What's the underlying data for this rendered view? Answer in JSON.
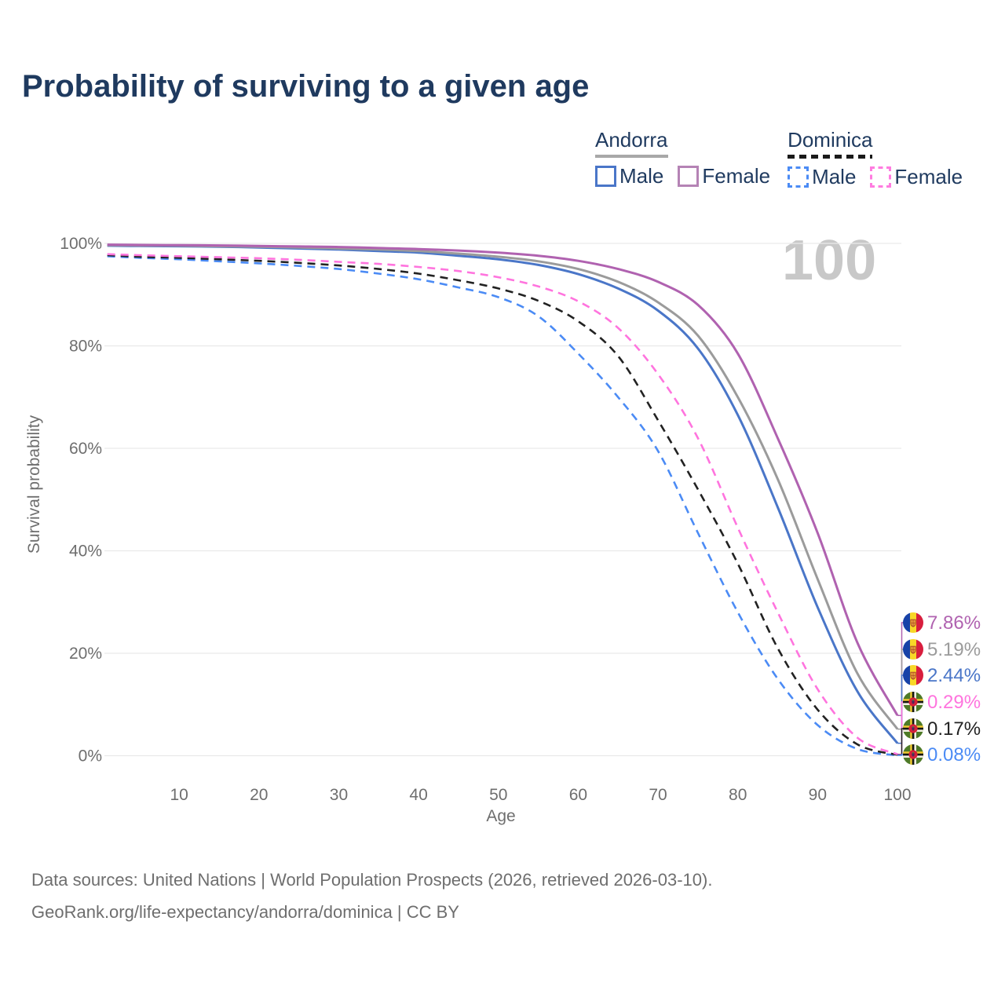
{
  "header": {
    "title": "Probability of surviving to a given age"
  },
  "legend": {
    "groups": [
      {
        "country": "Andorra",
        "line_color": "#a8a8a8",
        "line_style": "solid",
        "items": [
          {
            "label": "Male",
            "color": "#4a76c8",
            "style": "solid"
          },
          {
            "label": "Female",
            "color": "#b583b5",
            "style": "solid"
          }
        ]
      },
      {
        "country": "Dominica",
        "line_color": "#1a1a1a",
        "line_style": "dashed",
        "items": [
          {
            "label": "Male",
            "color": "#4b8bf5",
            "style": "dashed"
          },
          {
            "label": "Female",
            "color": "#ff7ce0",
            "style": "dashed"
          }
        ]
      }
    ]
  },
  "watermark": {
    "text": "100"
  },
  "chart_data": {
    "type": "line",
    "title": "Probability of surviving to a given age",
    "xlabel": "Age",
    "ylabel": "Survival probability",
    "xlim": [
      1,
      100
    ],
    "ylim": [
      0,
      100
    ],
    "grid": true,
    "legend_position": "top-right",
    "x_ticks": [
      10,
      20,
      30,
      40,
      50,
      60,
      70,
      80,
      90,
      100
    ],
    "y_ticks": [
      {
        "label": "100%",
        "value": 100
      },
      {
        "label": "80%",
        "value": 80
      },
      {
        "label": "60%",
        "value": 60
      },
      {
        "label": "40%",
        "value": 40
      },
      {
        "label": "20%",
        "value": 20
      },
      {
        "label": "0%",
        "value": 0
      }
    ],
    "ages": [
      1,
      5,
      10,
      15,
      20,
      25,
      30,
      35,
      40,
      45,
      50,
      55,
      60,
      65,
      70,
      75,
      80,
      85,
      90,
      95,
      100
    ],
    "series": [
      {
        "name": "Andorra Female",
        "country": "Andorra",
        "sex": "female",
        "color": "#b062b0",
        "dash": false,
        "values": [
          99.75,
          99.7,
          99.65,
          99.6,
          99.5,
          99.4,
          99.3,
          99.1,
          98.9,
          98.6,
          98.2,
          97.6,
          96.6,
          95.0,
          92.5,
          88.0,
          78.5,
          62.0,
          43.5,
          22.0,
          7.86
        ]
      },
      {
        "name": "Andorra Both sexes",
        "country": "Andorra",
        "sex": "both",
        "color": "#9b9b9b",
        "dash": false,
        "values": [
          99.65,
          99.6,
          99.55,
          99.45,
          99.35,
          99.2,
          99.0,
          98.8,
          98.5,
          98.0,
          97.4,
          96.5,
          95.0,
          92.5,
          88.5,
          82.0,
          70.0,
          54.0,
          34.5,
          16.0,
          5.19
        ]
      },
      {
        "name": "Andorra Male",
        "country": "Andorra",
        "sex": "male",
        "color": "#4a76c8",
        "dash": false,
        "values": [
          99.55,
          99.5,
          99.45,
          99.35,
          99.2,
          99.0,
          98.8,
          98.5,
          98.2,
          97.6,
          96.9,
          95.8,
          94.0,
          91.2,
          86.9,
          79.5,
          66.5,
          48.5,
          29.0,
          12.5,
          2.44
        ]
      },
      {
        "name": "Dominica Female",
        "country": "Dominica",
        "sex": "female",
        "color": "#ff74de",
        "dash": true,
        "values": [
          97.9,
          97.7,
          97.5,
          97.3,
          97.1,
          96.8,
          96.4,
          96.0,
          95.4,
          94.6,
          93.4,
          91.6,
          88.7,
          83.5,
          74.5,
          62.0,
          44.5,
          28.0,
          13.0,
          3.5,
          0.29
        ]
      },
      {
        "name": "Dominica Both sexes",
        "country": "Dominica",
        "sex": "both",
        "color": "#222222",
        "dash": true,
        "values": [
          97.7,
          97.4,
          97.2,
          96.9,
          96.6,
          96.2,
          95.7,
          95.0,
          94.1,
          92.8,
          91.2,
          88.8,
          84.8,
          78.0,
          65.5,
          52.0,
          37.5,
          21.0,
          9.0,
          2.2,
          0.17
        ]
      },
      {
        "name": "Dominica Male",
        "country": "Dominica",
        "sex": "male",
        "color": "#4b8bf5",
        "dash": true,
        "values": [
          97.5,
          97.2,
          96.9,
          96.5,
          96.1,
          95.6,
          95.0,
          94.1,
          93.0,
          91.4,
          89.5,
          85.8,
          78.5,
          70.0,
          59.5,
          43.5,
          28.0,
          15.0,
          6.0,
          1.3,
          0.08
        ]
      }
    ],
    "end_labels": [
      {
        "value": "7.86%",
        "color": "#b062b0",
        "flag": "andorra"
      },
      {
        "value": "5.19%",
        "color": "#9b9b9b",
        "flag": "andorra"
      },
      {
        "value": "2.44%",
        "color": "#4a76c8",
        "flag": "andorra"
      },
      {
        "value": "0.29%",
        "color": "#ff74de",
        "flag": "dominica"
      },
      {
        "value": "0.17%",
        "color": "#222222",
        "flag": "dominica"
      },
      {
        "value": "0.08%",
        "color": "#4b8bf5",
        "flag": "dominica"
      }
    ]
  },
  "footer": {
    "line1": "Data sources: United Nations | World Population Prospects (2026, retrieved 2026-03-10).",
    "line2": "GeoRank.org/life-expectancy/andorra/dominica | CC BY"
  }
}
